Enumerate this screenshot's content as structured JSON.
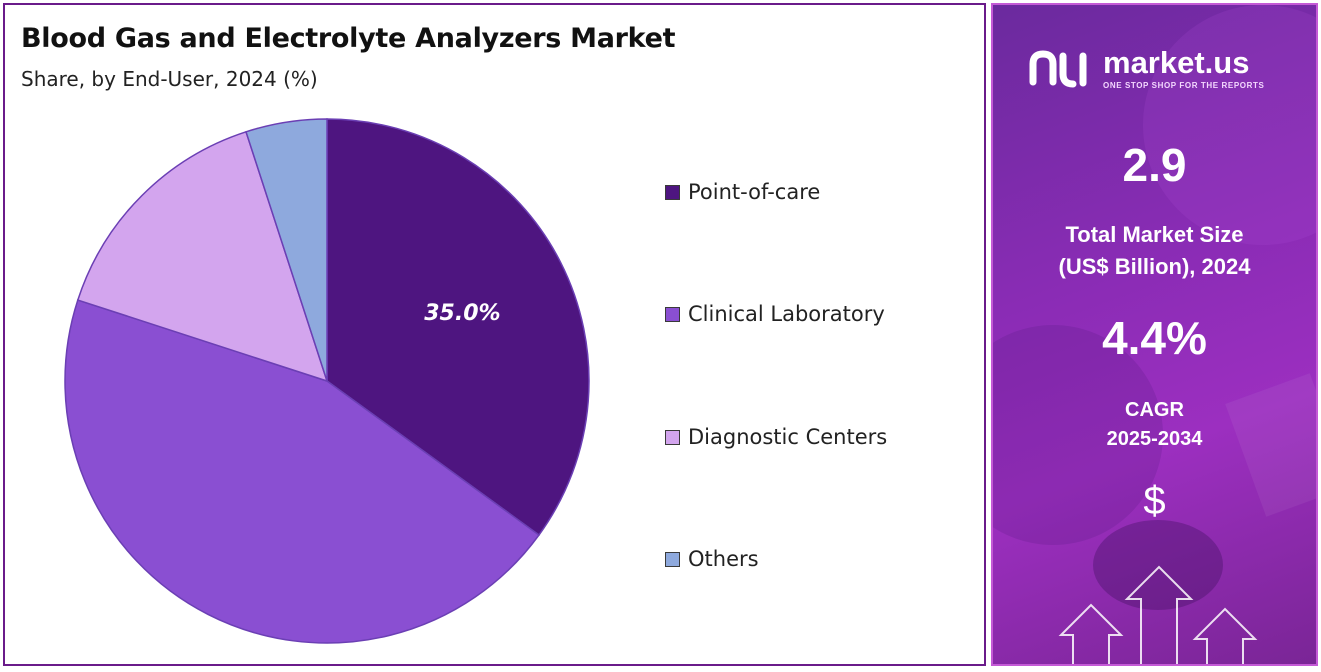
{
  "title": "Blood Gas and Electrolyte Analyzers Market",
  "subtitle": "Share, by End-User, 2024 (%)",
  "chart_data": {
    "type": "pie",
    "title": "Blood Gas and Electrolyte Analyzers Market",
    "subtitle": "Share, by End-User, 2024 (%)",
    "start_angle_deg": 0,
    "direction": "clockwise",
    "slices": [
      {
        "label": "Point-of-care",
        "value": 35.0,
        "color": "#4e1580",
        "data_label": "35.0%"
      },
      {
        "label": "Clinical Laboratory",
        "value": 45.0,
        "color": "#8a4fd2",
        "data_label": ""
      },
      {
        "label": "Diagnostic Centers",
        "value": 15.0,
        "color": "#d3a5ee",
        "data_label": ""
      },
      {
        "label": "Others",
        "value": 5.0,
        "color": "#8ea9dd",
        "data_label": ""
      }
    ],
    "legend_position": "right"
  },
  "sidebar": {
    "brand_name": "market.us",
    "brand_tagline": "ONE STOP SHOP FOR THE REPORTS",
    "market_size_value": "2.9",
    "market_size_label_line1": "Total Market Size",
    "market_size_label_line2": "(US$ Billion), 2024",
    "cagr_value": "4.4%",
    "cagr_label_line1": "CAGR",
    "cagr_label_line2": "2025-2034",
    "currency_symbol": "$",
    "accent_color": "#9c2fc0"
  }
}
